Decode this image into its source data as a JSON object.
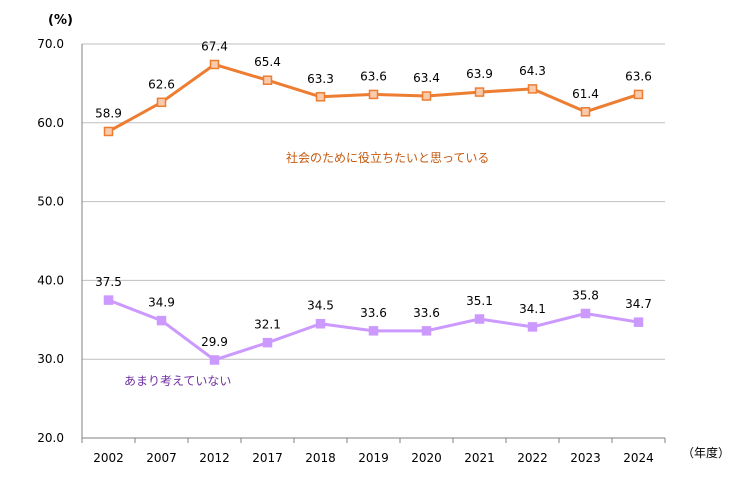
{
  "chart_data": {
    "type": "line",
    "y_unit_label": "(%)",
    "x_unit_label": "（年度）",
    "categories": [
      "2002",
      "2007",
      "2012",
      "2017",
      "2018",
      "2019",
      "2020",
      "2021",
      "2022",
      "2023",
      "2024"
    ],
    "ylim": [
      20,
      70
    ],
    "yticks": [
      "20.0",
      "30.0",
      "40.0",
      "50.0",
      "60.0",
      "70.0"
    ],
    "grid": true,
    "series": [
      {
        "name": "社会のために役立ちたいと思っている",
        "color": "#ED7D31",
        "marker_fill": "#F8CBAD",
        "values": [
          58.9,
          62.6,
          67.4,
          65.4,
          63.3,
          63.6,
          63.4,
          63.9,
          64.3,
          61.4,
          63.6
        ],
        "labels": [
          "58.9",
          "62.6",
          "67.4",
          "65.4",
          "63.3",
          "63.6",
          "63.4",
          "63.9",
          "64.3",
          "61.4",
          "63.6"
        ]
      },
      {
        "name": "あまり考えていない",
        "color": "#CC99FF",
        "marker_fill": "#CC99FF",
        "values": [
          37.5,
          34.9,
          29.9,
          32.1,
          34.5,
          33.6,
          33.6,
          35.1,
          34.1,
          35.8,
          34.7
        ],
        "labels": [
          "37.5",
          "34.9",
          "29.9",
          "32.1",
          "34.5",
          "33.6",
          "33.6",
          "35.1",
          "34.1",
          "35.8",
          "34.7"
        ]
      }
    ]
  }
}
